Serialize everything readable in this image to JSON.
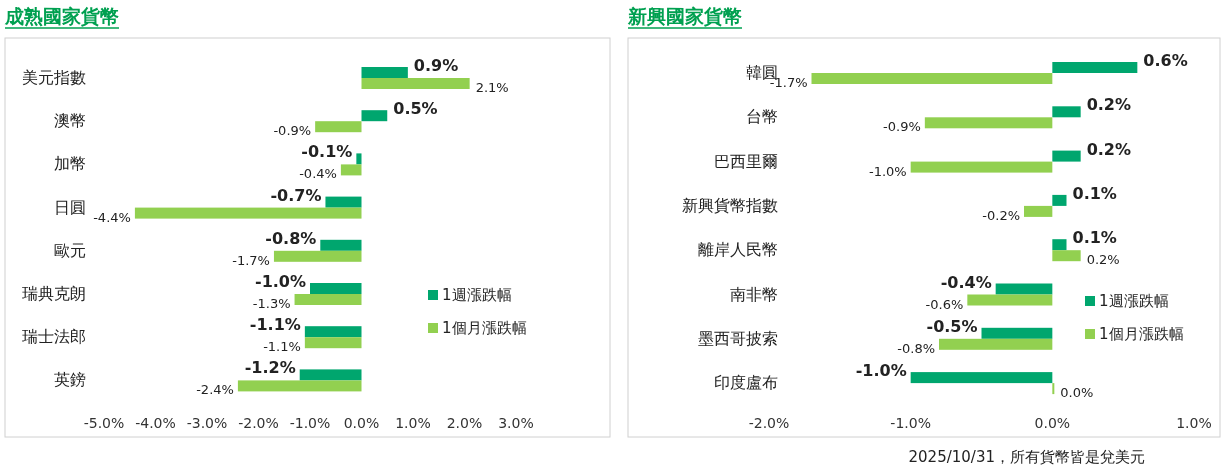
{
  "chart_data": [
    {
      "type": "bar",
      "orientation": "horizontal",
      "title": "成熟國家貨幣",
      "categories": [
        "美元指數",
        "澳幣",
        "加幣",
        "日圓",
        "歐元",
        "瑞典克朗",
        "瑞士法郎",
        "英鎊"
      ],
      "xlim": [
        -5,
        3
      ],
      "xticks": [
        {
          "value": -5,
          "label": "-5.0%"
        },
        {
          "value": -4,
          "label": "-4.0%"
        },
        {
          "value": -3,
          "label": "-3.0%"
        },
        {
          "value": -2,
          "label": "-2.0%"
        },
        {
          "value": -1,
          "label": "-1.0%"
        },
        {
          "value": 0,
          "label": "0.0%"
        },
        {
          "value": 1,
          "label": "1.0%"
        },
        {
          "value": 2,
          "label": "2.0%"
        },
        {
          "value": 3,
          "label": "3.0%"
        }
      ],
      "legend": "right",
      "grid": false,
      "series": [
        {
          "name": "1週漲跌幅",
          "color": "#00a66e",
          "values": [
            0.9,
            0.5,
            -0.1,
            -0.7,
            -0.8,
            -1.0,
            -1.1,
            -1.2
          ],
          "value_labels": [
            "0.9%",
            "0.5%",
            "-0.1%",
            "-0.7%",
            "-0.8%",
            "-1.0%",
            "-1.1%",
            "-1.2%"
          ]
        },
        {
          "name": "1個月漲跌幅",
          "color": "#92d050",
          "values": [
            2.1,
            -0.9,
            -0.4,
            -4.4,
            -1.7,
            -1.3,
            -1.1,
            -2.4
          ],
          "value_labels": [
            "2.1%",
            "-0.9%",
            "-0.4%",
            "-4.4%",
            "-1.7%",
            "-1.3%",
            "-1.1%",
            "-2.4%"
          ]
        }
      ]
    },
    {
      "type": "bar",
      "orientation": "horizontal",
      "title": "新興國家貨幣",
      "categories": [
        "韓圓",
        "台幣",
        "巴西里爾",
        "新興貨幣指數",
        "離岸人民幣",
        "南非幣",
        "墨西哥披索",
        "印度盧布"
      ],
      "xlim": [
        -2,
        1
      ],
      "xticks": [
        {
          "value": -2,
          "label": "-2.0%"
        },
        {
          "value": -1,
          "label": "-1.0%"
        },
        {
          "value": 0,
          "label": "0.0%"
        },
        {
          "value": 1,
          "label": "1.0%"
        }
      ],
      "legend": "right",
      "grid": false,
      "annotations": [
        "2025/10/31，所有貨幣皆是兌美元"
      ],
      "series": [
        {
          "name": "1週漲跌幅",
          "color": "#00a66e",
          "values": [
            0.6,
            0.2,
            0.2,
            0.1,
            0.1,
            -0.4,
            -0.5,
            -1.0
          ],
          "value_labels": [
            "0.6%",
            "0.2%",
            "0.2%",
            "0.1%",
            "0.1%",
            "-0.4%",
            "-0.5%",
            "-1.0%"
          ]
        },
        {
          "name": "1個月漲跌幅",
          "color": "#92d050",
          "values": [
            -1.7,
            -0.9,
            -1.0,
            -0.2,
            0.2,
            -0.6,
            -0.8,
            0.0
          ],
          "value_labels": [
            "-1.7%",
            "-0.9%",
            "-1.0%",
            "-0.2%",
            "0.2%",
            "-0.6%",
            "-0.8%",
            "0.0%"
          ]
        }
      ]
    }
  ]
}
